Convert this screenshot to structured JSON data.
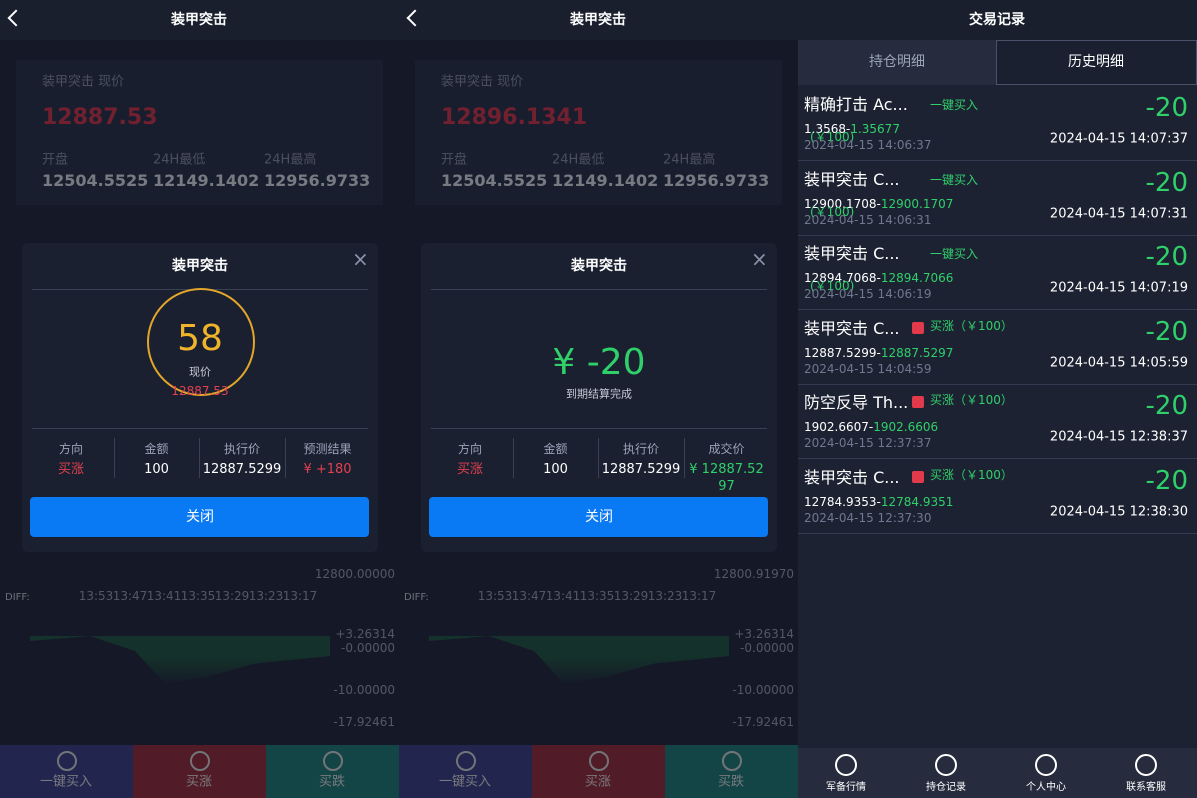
{
  "panels": [
    {
      "header": {
        "title": "装甲突击"
      },
      "quote": {
        "label": "装甲突击 现价",
        "price": "12887.53",
        "stats": [
          {
            "label": "开盘",
            "value": "12504.5525"
          },
          {
            "label": "24H最低",
            "value": "12149.1402"
          },
          {
            "label": "24H最高",
            "value": "12956.9733"
          }
        ]
      },
      "chart": {
        "diff_label": "DIFF:",
        "time_labels": [
          "13:53",
          "13:47",
          "13:41",
          "13:35",
          "13:29",
          "13:23",
          "13:17"
        ],
        "price_label": "12800.00000",
        "macd_labels": [
          "+3.26314",
          "-0.00000",
          "-10.00000",
          "-17.92461"
        ]
      },
      "modal": {
        "title": "装甲突击",
        "ring": {
          "value": "58",
          "label": "现价",
          "price": "12887.53"
        },
        "columns": [
          {
            "label": "方向",
            "value": "买涨"
          },
          {
            "label": "金额",
            "value": "100"
          },
          {
            "label": "执行价",
            "value": "12887.5299"
          },
          {
            "label": "预测结果",
            "value": "¥ +180"
          }
        ],
        "result_color": "#e0404f",
        "button": "关闭"
      },
      "actions": [
        "一键买入",
        "买涨",
        "买跌"
      ]
    },
    {
      "header": {
        "title": "装甲突击"
      },
      "quote": {
        "label": "装甲突击 现价",
        "price": "12896.1341",
        "stats": [
          {
            "label": "开盘",
            "value": "12504.5525"
          },
          {
            "label": "24H最低",
            "value": "12149.1402"
          },
          {
            "label": "24H最高",
            "value": "12956.9733"
          }
        ]
      },
      "chart": {
        "diff_label": "DIFF:",
        "time_labels": [
          "13:53",
          "13:47",
          "13:41",
          "13:35",
          "13:29",
          "13:23",
          "13:17"
        ],
        "price_label": "12800.91970",
        "macd_labels": [
          "+3.26314",
          "-0.00000",
          "-10.00000",
          "-17.92461"
        ]
      },
      "modal": {
        "title": "装甲突击",
        "result": {
          "value": "¥ -20",
          "note": "到期结算完成"
        },
        "columns": [
          {
            "label": "方向",
            "value": "买涨"
          },
          {
            "label": "金额",
            "value": "100"
          },
          {
            "label": "执行价",
            "value": "12887.5299"
          },
          {
            "label": "成交价",
            "value": "¥ 12887.5297"
          }
        ],
        "result_color": "#2fd06a",
        "button": "关闭"
      },
      "actions": [
        "一键买入",
        "买涨",
        "买跌"
      ]
    }
  ],
  "records": {
    "title": "交易记录",
    "tabs": [
      "持仓明细",
      "历史明细"
    ],
    "items": [
      {
        "name": "精确打击 Ac...",
        "tag": "一键买入",
        "open": "1.3568-",
        "close": "1.35677",
        "stake": "(￥100)",
        "opened": "2024-04-15 14:06:37",
        "amount": "-20",
        "closed": "2024-04-15 14:07:37"
      },
      {
        "name": "装甲突击 C...",
        "tag": "一键买入",
        "open": "12900.1708-",
        "close": "12900.1707",
        "stake": "(￥100)",
        "opened": "2024-04-15 14:06:31",
        "amount": "-20",
        "closed": "2024-04-15 14:07:31"
      },
      {
        "name": "装甲突击 C...",
        "tag": "一键买入",
        "open": "12894.7068-",
        "close": "12894.7066",
        "stake": "(￥100)",
        "opened": "2024-04-15 14:06:19",
        "amount": "-20",
        "closed": "2024-04-15 14:07:19"
      },
      {
        "name": "装甲突击 C...",
        "tag": "买涨（￥100）",
        "open": "12887.5299-",
        "close": "12887.5297",
        "opened": "2024-04-15 14:04:59",
        "amount": "-20",
        "closed": "2024-04-15 14:05:59"
      },
      {
        "name": "防空反导 Th...",
        "tag": "买涨（￥100）",
        "open": "1902.6607-",
        "close": "1902.6606",
        "opened": "2024-04-15 12:37:37",
        "amount": "-20",
        "closed": "2024-04-15 12:38:37"
      },
      {
        "name": "装甲突击 C...",
        "tag": "买涨（￥100）",
        "open": "12784.9353-",
        "close": "12784.9351",
        "opened": "2024-04-15 12:37:30",
        "amount": "-20",
        "closed": "2024-04-15 12:38:30"
      }
    ],
    "nav": [
      "军备行情",
      "持仓记录",
      "个人中心",
      "联系客服"
    ]
  }
}
